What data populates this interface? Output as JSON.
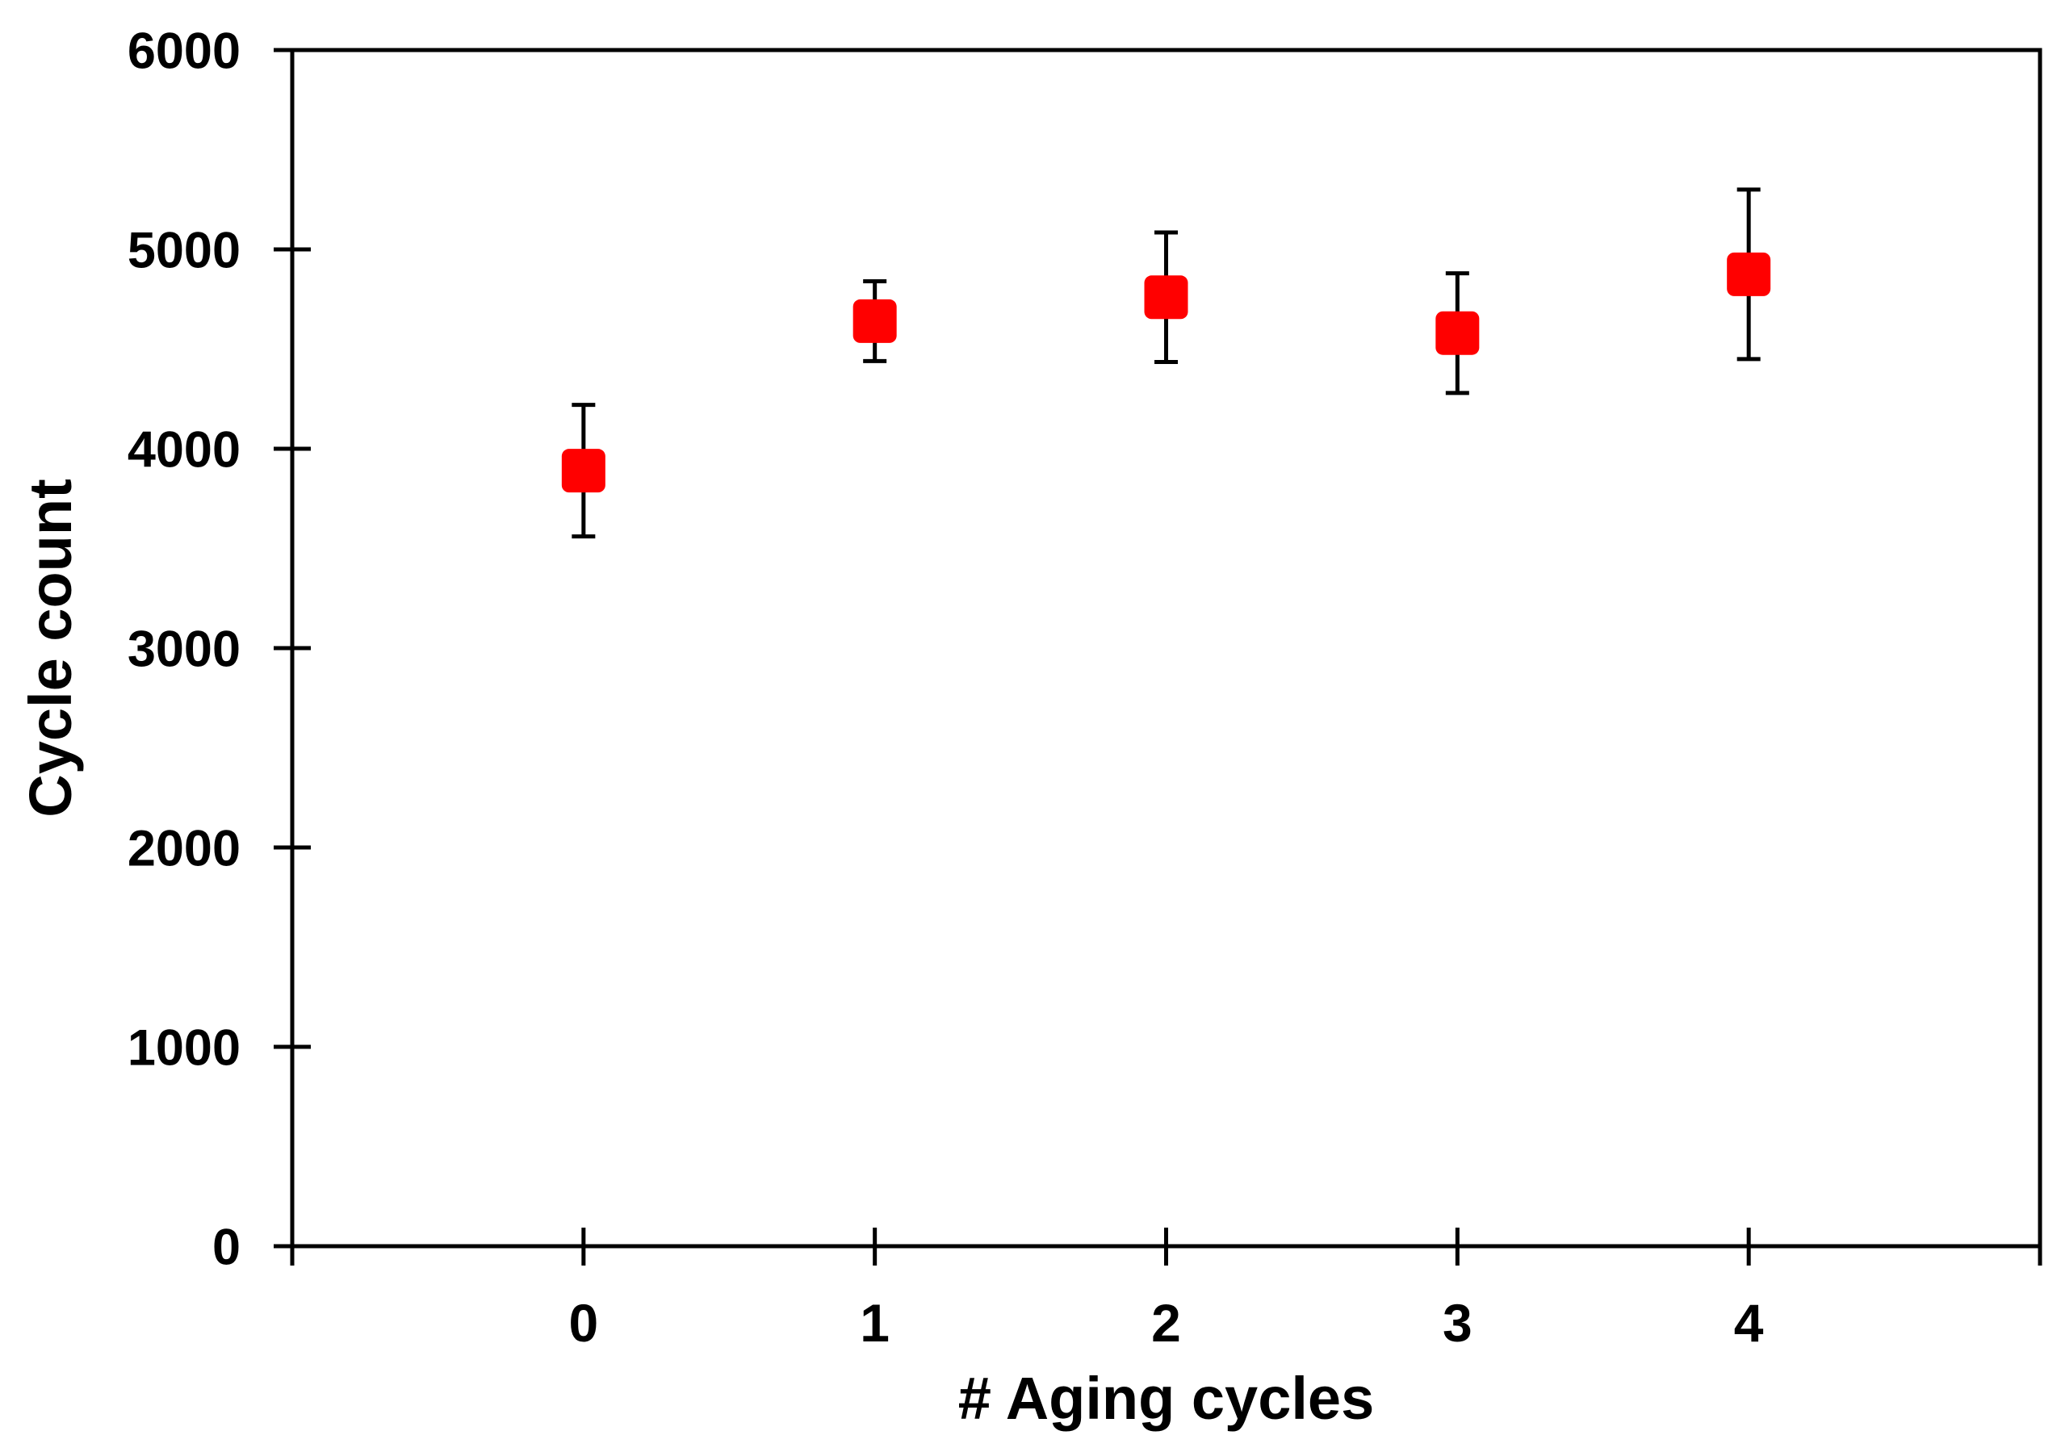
{
  "figure": {
    "background": "#ffffff"
  },
  "chart_data": {
    "type": "scatter",
    "xlabel": "# Aging cycles",
    "ylabel": "Cycle count",
    "x": [
      0,
      1,
      2,
      3,
      4
    ],
    "y": [
      3890,
      4640,
      4760,
      4580,
      4875
    ],
    "yerr": [
      330,
      200,
      325,
      300,
      425
    ],
    "xlim": [
      -1,
      5
    ],
    "ylim": [
      0,
      6000
    ],
    "x_ticks": [
      0,
      1,
      2,
      3,
      4
    ],
    "x_tick_labels": [
      "0",
      "1",
      "2",
      "3",
      "4"
    ],
    "y_ticks": [
      0,
      1000,
      2000,
      3000,
      4000,
      5000,
      6000
    ],
    "y_tick_labels": [
      "0",
      "1000",
      "2000",
      "3000",
      "4000",
      "5000",
      "6000"
    ],
    "grid": false,
    "legend": null,
    "frame": true,
    "marker": {
      "shape": "rounded-square",
      "size": 54,
      "corner_radius": 9,
      "color": "#FF0000"
    },
    "error_bar": {
      "color": "#000000",
      "line_width": 5,
      "cap_width": 29,
      "cap_thickness": 5
    },
    "axis": {
      "color": "#000000",
      "line_width": 5,
      "tick_width": 5,
      "tick_out": 23,
      "tick_in": 23
    }
  }
}
